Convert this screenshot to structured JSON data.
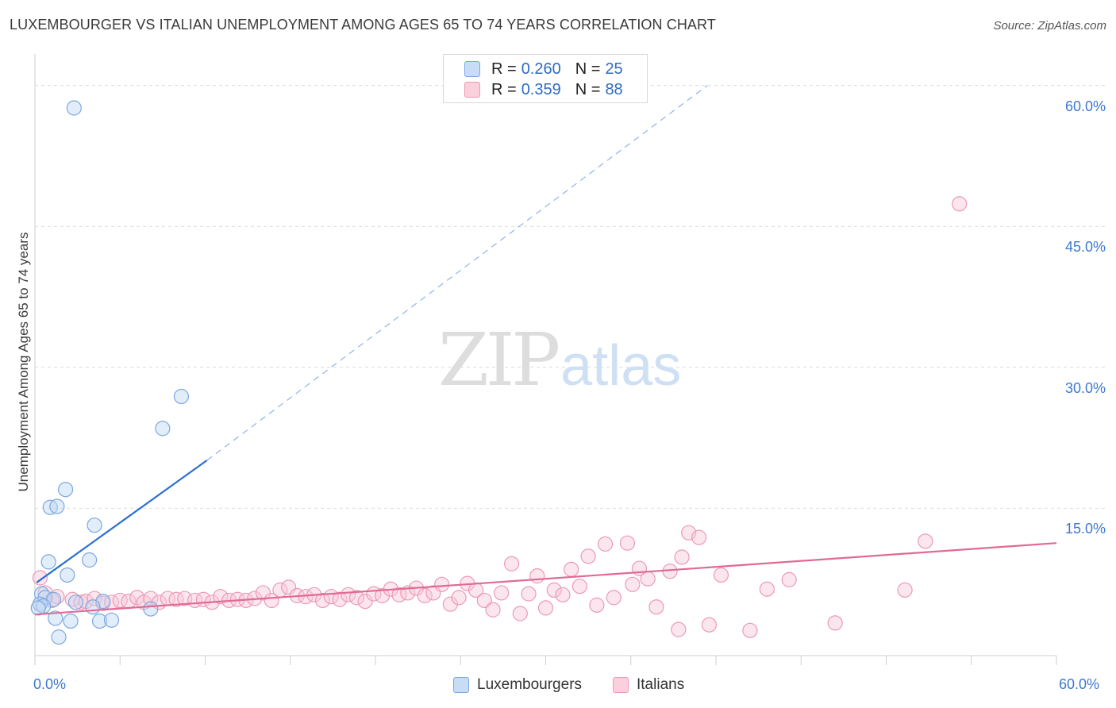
{
  "title": "LUXEMBOURGER VS ITALIAN UNEMPLOYMENT AMONG AGES 65 TO 74 YEARS CORRELATION CHART",
  "source": "Source: ZipAtlas.com",
  "watermark": {
    "zip": "ZIP",
    "atlas": "atlas"
  },
  "legend": {
    "rows": [
      {
        "swatch": "#c8dcf6",
        "r_label": "R =",
        "r_value": "0.260",
        "n_label": "N =",
        "n_value": "25"
      },
      {
        "swatch": "#f9d0dc",
        "r_label": "R =",
        "r_value": "0.359",
        "n_label": "N =",
        "n_value": "88"
      }
    ]
  },
  "bottom_legend": {
    "luxembourgers": "Luxembourgers",
    "italians": "Italians"
  },
  "chart_data": {
    "type": "scatter",
    "title": "LUXEMBOURGER VS ITALIAN UNEMPLOYMENT AMONG AGES 65 TO 74 YEARS CORRELATION CHART",
    "xlabel": "",
    "ylabel": "Unemployment Among Ages 65 to 74 years",
    "xlim": [
      0,
      60
    ],
    "ylim": [
      0,
      62.5
    ],
    "x_tick_labels": {
      "left": "0.0%",
      "right": "60.0%"
    },
    "y_ticks": [
      15,
      30,
      45,
      60
    ],
    "y_tick_labels": [
      "15.0%",
      "30.0%",
      "45.0%",
      "60.0%"
    ],
    "grid": true,
    "colors": {
      "luxembourgers": "#7da8e0",
      "luxembourgers_line": "#2a6fd0",
      "italians": "#ec9ab4",
      "italians_line": "#e06a95",
      "tick_text": "#3d78d0"
    },
    "series": [
      {
        "name": "Luxembourgers",
        "r": 0.26,
        "n": 25,
        "trend": {
          "x0": 0.1,
          "y0": 7.1,
          "x1": 10.1,
          "y1": 20.1,
          "dash_x1": 39.5,
          "dash_y1": 60.0
        },
        "points": [
          [
            2.3,
            57.6
          ],
          [
            8.6,
            26.9
          ],
          [
            7.5,
            23.5
          ],
          [
            1.8,
            17.0
          ],
          [
            0.9,
            15.1
          ],
          [
            1.3,
            15.2
          ],
          [
            3.5,
            13.2
          ],
          [
            0.8,
            9.3
          ],
          [
            3.2,
            9.5
          ],
          [
            1.9,
            7.9
          ],
          [
            0.4,
            5.9
          ],
          [
            0.6,
            5.5
          ],
          [
            1.1,
            5.3
          ],
          [
            0.3,
            4.8
          ],
          [
            0.5,
            4.6
          ],
          [
            0.2,
            4.4
          ],
          [
            2.4,
            5.0
          ],
          [
            4.0,
            5.1
          ],
          [
            3.4,
            4.5
          ],
          [
            6.8,
            4.3
          ],
          [
            1.2,
            3.3
          ],
          [
            2.1,
            3.0
          ],
          [
            3.8,
            3.0
          ],
          [
            4.5,
            3.1
          ],
          [
            1.4,
            1.3
          ]
        ]
      },
      {
        "name": "Italians",
        "r": 0.359,
        "n": 88,
        "trend": {
          "x0": 0.0,
          "y0": 3.7,
          "x1": 60.0,
          "y1": 11.3
        },
        "points": [
          [
            0.3,
            7.6
          ],
          [
            0.6,
            6.0
          ],
          [
            1.0,
            5.2
          ],
          [
            1.3,
            5.6
          ],
          [
            2.2,
            5.3
          ],
          [
            2.7,
            5.0
          ],
          [
            3.0,
            5.1
          ],
          [
            3.5,
            5.4
          ],
          [
            4.0,
            4.9
          ],
          [
            4.5,
            5.0
          ],
          [
            5.0,
            5.2
          ],
          [
            5.5,
            5.1
          ],
          [
            6.0,
            5.5
          ],
          [
            6.4,
            5.0
          ],
          [
            6.8,
            5.4
          ],
          [
            7.3,
            5.0
          ],
          [
            7.8,
            5.4
          ],
          [
            8.3,
            5.3
          ],
          [
            8.8,
            5.4
          ],
          [
            9.4,
            5.2
          ],
          [
            9.9,
            5.3
          ],
          [
            10.4,
            5.0
          ],
          [
            10.9,
            5.6
          ],
          [
            11.4,
            5.2
          ],
          [
            11.9,
            5.3
          ],
          [
            12.4,
            5.2
          ],
          [
            12.9,
            5.4
          ],
          [
            13.4,
            6.0
          ],
          [
            13.9,
            5.2
          ],
          [
            14.4,
            6.3
          ],
          [
            14.9,
            6.6
          ],
          [
            15.4,
            5.7
          ],
          [
            15.9,
            5.6
          ],
          [
            16.4,
            5.8
          ],
          [
            16.9,
            5.2
          ],
          [
            17.4,
            5.6
          ],
          [
            17.9,
            5.3
          ],
          [
            18.4,
            5.8
          ],
          [
            18.9,
            5.5
          ],
          [
            19.4,
            5.1
          ],
          [
            19.9,
            5.9
          ],
          [
            20.4,
            5.7
          ],
          [
            20.9,
            6.4
          ],
          [
            21.4,
            5.8
          ],
          [
            21.9,
            6.0
          ],
          [
            22.4,
            6.5
          ],
          [
            22.9,
            5.7
          ],
          [
            23.4,
            6.0
          ],
          [
            23.9,
            6.9
          ],
          [
            24.4,
            4.8
          ],
          [
            24.9,
            5.5
          ],
          [
            25.4,
            7.0
          ],
          [
            25.9,
            6.3
          ],
          [
            26.4,
            5.2
          ],
          [
            26.9,
            4.2
          ],
          [
            27.4,
            6.0
          ],
          [
            28.0,
            9.1
          ],
          [
            28.5,
            3.8
          ],
          [
            29.0,
            5.9
          ],
          [
            29.5,
            7.8
          ],
          [
            30.0,
            4.4
          ],
          [
            30.5,
            6.3
          ],
          [
            31.0,
            5.8
          ],
          [
            31.5,
            8.5
          ],
          [
            32.0,
            6.7
          ],
          [
            32.5,
            9.9
          ],
          [
            33.0,
            4.7
          ],
          [
            33.5,
            11.2
          ],
          [
            34.0,
            5.5
          ],
          [
            34.8,
            11.3
          ],
          [
            35.1,
            6.9
          ],
          [
            35.5,
            8.6
          ],
          [
            36.0,
            7.5
          ],
          [
            36.5,
            4.5
          ],
          [
            37.3,
            8.3
          ],
          [
            37.8,
            2.1
          ],
          [
            38.0,
            9.8
          ],
          [
            38.4,
            12.4
          ],
          [
            39.0,
            11.9
          ],
          [
            39.6,
            2.6
          ],
          [
            40.3,
            7.9
          ],
          [
            42.0,
            2.0
          ],
          [
            43.0,
            6.4
          ],
          [
            44.3,
            7.4
          ],
          [
            47.0,
            2.8
          ],
          [
            51.1,
            6.3
          ],
          [
            52.3,
            11.5
          ],
          [
            54.3,
            47.4
          ]
        ]
      }
    ]
  }
}
